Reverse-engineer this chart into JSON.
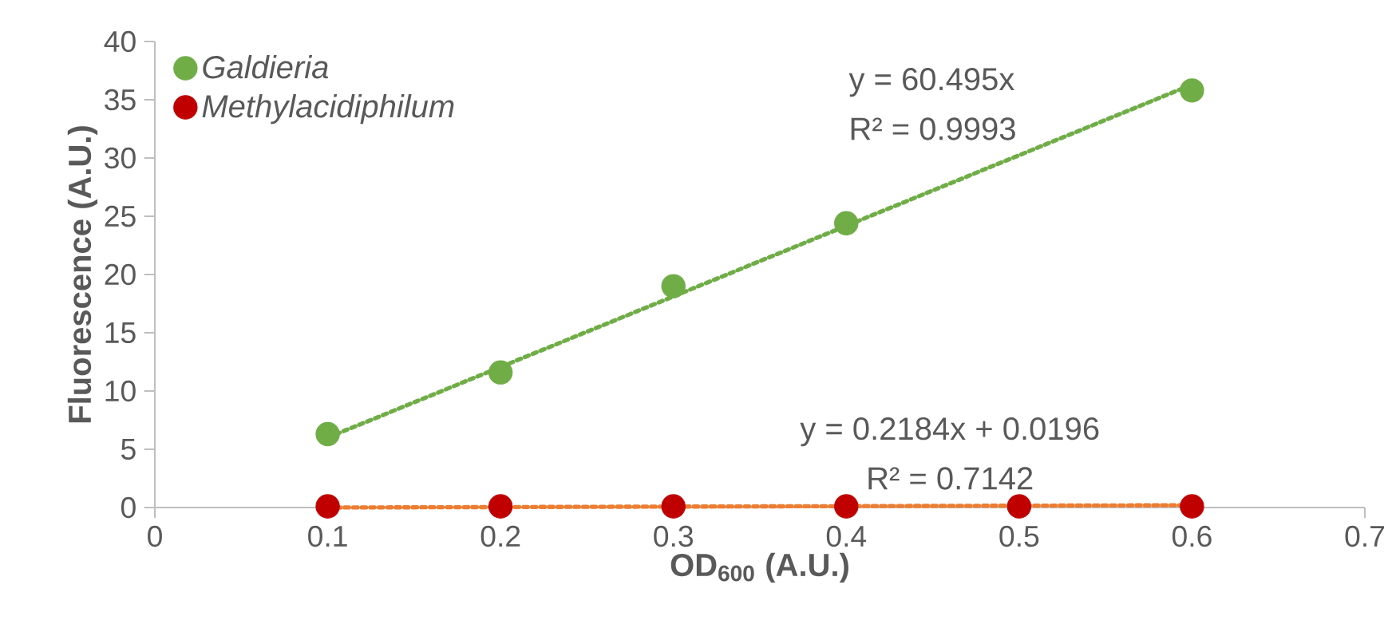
{
  "chart_data": {
    "type": "scatter",
    "xlabel": "OD$_{600}$ (A.U.)",
    "ylabel": "Fluorescence (A.U.)",
    "xlim": [
      0,
      0.7
    ],
    "ylim": [
      0,
      40
    ],
    "xticks": [
      0,
      0.1,
      0.2,
      0.3,
      0.4,
      0.5,
      0.6,
      0.7
    ],
    "yticks": [
      0,
      5,
      10,
      15,
      20,
      25,
      30,
      35,
      40
    ],
    "legend": "top left",
    "marker": "circle",
    "grid": false,
    "series": [
      {
        "name": "Galdieria",
        "color": "#70ad47",
        "x": [
          0.1,
          0.2,
          0.3,
          0.4,
          0.6
        ],
        "values": [
          6.3,
          11.6,
          19.0,
          24.4,
          35.8
        ]
      },
      {
        "name": "Methylacidiphilum",
        "color": "#c00000",
        "x": [
          0.1,
          0.2,
          0.3,
          0.4,
          0.5,
          0.6
        ],
        "values": [
          0.1,
          0.1,
          0.1,
          0.1,
          0.1,
          0.1
        ]
      },
      {
        "type": "line",
        "color": "#70ad47",
        "marker": "none",
        "line_style": "dotted",
        "x": [
          0.1,
          0.6
        ],
        "values": [
          6.0,
          36.3
        ]
      },
      {
        "type": "line",
        "color": "#ed7d31",
        "marker": "none",
        "line_style": "dotted",
        "x": [
          0.1,
          0.6
        ],
        "values": [
          0.0,
          0.2
        ]
      }
    ],
    "annotations": [
      "y = 60.495x",
      "R² = 0.9993",
      "y = 0.2184x + 0.0196",
      "R² = 0.7142"
    ]
  }
}
